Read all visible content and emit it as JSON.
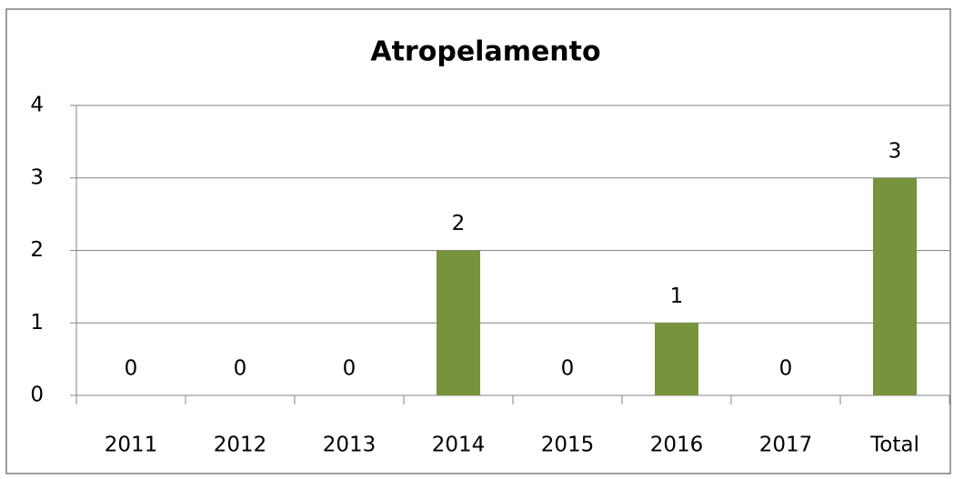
{
  "chart_data": {
    "type": "bar",
    "title": "Atropelamento",
    "categories": [
      "2011",
      "2012",
      "2013",
      "2014",
      "2015",
      "2016",
      "2017",
      "Total"
    ],
    "values": [
      0,
      0,
      0,
      2,
      0,
      1,
      0,
      3
    ],
    "color": "#77933c",
    "ylim": [
      0,
      4
    ],
    "yticks": [
      0,
      1,
      2,
      3,
      4
    ],
    "grid": true
  }
}
